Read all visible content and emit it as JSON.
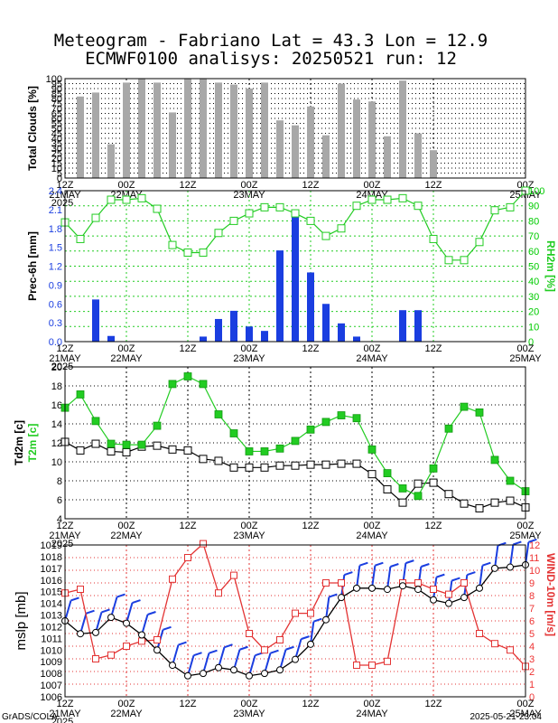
{
  "title_line1": "Meteogram - Fabriano Lat = 43.3 Lon = 12.9",
  "title_line2": "ECMWF0100 analisys: 20250521 run: 12",
  "footer_left": "GrADS/COLA",
  "footer_right": "2025-05-21-23:04",
  "time_axis": {
    "tick_labels": [
      "12Z",
      "00Z",
      "12Z",
      "00Z",
      "12Z",
      "00Z",
      "12Z",
      "00Z"
    ],
    "date_labels": [
      "21MAY",
      "22MAY",
      "23MAY",
      "24MAY",
      "25MAY"
    ],
    "year_label": "2025"
  },
  "colors": {
    "clouds_bar": "#a8a8a8",
    "precip_bar": "#1a3ee0",
    "rh_line": "#22cc22",
    "t2m_line": "#22cc22",
    "td2m_line": "#000000",
    "mslp_line": "#000000",
    "wind_line": "#e33333",
    "barb": "#1a3ee0",
    "grid_green": "#22cc22",
    "grid_red": "#e33333"
  },
  "chart_data": [
    {
      "type": "bar",
      "ylabel": "Total Clouds [%]",
      "ylim": [
        0,
        100
      ],
      "yticks": [
        0,
        5,
        10,
        15,
        20,
        25,
        30,
        35,
        40,
        45,
        50,
        55,
        60,
        65,
        70,
        75,
        80,
        85,
        90,
        95,
        100
      ],
      "x_hours": [
        3,
        6,
        9,
        12,
        15,
        18,
        21,
        24,
        27,
        30,
        33,
        36,
        39,
        42,
        45,
        48,
        51,
        54,
        57,
        60,
        63,
        66,
        69,
        72
      ],
      "values": [
        82,
        86,
        34,
        96,
        100,
        96,
        66,
        100,
        100,
        96,
        94,
        90,
        96,
        58,
        53,
        72,
        43,
        95,
        79,
        77,
        42,
        98,
        45,
        28
      ]
    },
    {
      "type": "bar",
      "ylabel": "Prec-6h [mm]",
      "y2label": "RH2m [%]",
      "ylim": [
        0,
        2.4
      ],
      "yticks": [
        0,
        0.3,
        0.6,
        0.9,
        1.2,
        1.5,
        1.8,
        2.1,
        2.4
      ],
      "y2lim": [
        0,
        100
      ],
      "y2ticks": [
        0,
        10,
        20,
        30,
        40,
        50,
        60,
        70,
        80,
        90,
        100
      ],
      "precip_x_hours": [
        3,
        6,
        9,
        12,
        15,
        18,
        21,
        24,
        27,
        30,
        33,
        36,
        39,
        42,
        45,
        48,
        51,
        54,
        57,
        60,
        63,
        66,
        69,
        72
      ],
      "precip_values": [
        0,
        0.67,
        0.09,
        0,
        0,
        0,
        0,
        0,
        0.08,
        0.36,
        0.49,
        0.24,
        0.17,
        1.45,
        1.99,
        1.1,
        0.6,
        0.29,
        0.08,
        0,
        0,
        0.5,
        0.5,
        0
      ],
      "rh_x_hours": [
        0,
        3,
        6,
        9,
        12,
        15,
        18,
        21,
        24,
        27,
        30,
        33,
        36,
        39,
        42,
        45,
        48,
        51,
        54,
        57,
        60,
        63,
        66,
        69,
        72,
        75,
        78,
        81,
        84,
        87,
        90
      ],
      "rh_values": [
        79,
        68,
        82,
        94,
        94,
        95,
        88,
        64,
        59,
        59,
        72,
        80,
        85,
        89,
        89,
        85,
        80,
        70,
        75,
        90,
        94,
        94,
        95,
        90,
        68,
        54,
        54,
        66,
        87,
        89,
        100
      ]
    },
    {
      "type": "line",
      "ylabel": "Td2m [c]",
      "ylabel2": "T2m [c]",
      "ylim": [
        4,
        20
      ],
      "yticks": [
        4,
        6,
        8,
        10,
        12,
        14,
        16,
        18,
        20
      ],
      "series": [
        {
          "name": "T2m [c]",
          "x_hours": [
            0,
            3,
            6,
            9,
            12,
            15,
            18,
            21,
            24,
            27,
            30,
            33,
            36,
            39,
            42,
            45,
            48,
            51,
            54,
            57,
            60,
            63,
            66,
            69,
            72,
            75,
            78,
            81,
            84,
            87,
            90
          ],
          "values": [
            15.7,
            17.1,
            14.3,
            11.9,
            11.8,
            11.8,
            13.8,
            18.2,
            19.0,
            18.2,
            15.0,
            13.0,
            11.1,
            11.1,
            11.4,
            12.2,
            13.4,
            14.2,
            14.9,
            14.6,
            11.3,
            8.8,
            7.2,
            6.4,
            9.3,
            13.5,
            15.8,
            15.2,
            10.2,
            8.0,
            6.9
          ]
        },
        {
          "name": "Td2m [c]",
          "x_hours": [
            0,
            3,
            6,
            9,
            12,
            15,
            18,
            21,
            24,
            27,
            30,
            33,
            36,
            39,
            42,
            45,
            48,
            51,
            54,
            57,
            60,
            63,
            66,
            69,
            72,
            75,
            78,
            81,
            84,
            87,
            90
          ],
          "values": [
            12.1,
            11.2,
            11.9,
            11.1,
            11.0,
            11.6,
            11.7,
            11.3,
            11.2,
            10.3,
            10.1,
            9.4,
            9.4,
            9.4,
            9.6,
            9.6,
            9.7,
            9.7,
            9.8,
            9.8,
            8.7,
            7.1,
            5.7,
            7.7,
            7.8,
            6.6,
            5.6,
            5.1,
            5.7,
            5.9,
            5.2
          ]
        }
      ]
    },
    {
      "type": "line",
      "ylabel": "mslp [mb]",
      "y2label": "WIND-10m [m/s]",
      "ylim": [
        1006,
        1019
      ],
      "yticks": [
        1006,
        1007,
        1008,
        1009,
        1010,
        1011,
        1012,
        1013,
        1014,
        1015,
        1016,
        1017,
        1018,
        1019
      ],
      "y2lim": [
        0,
        12
      ],
      "y2ticks": [
        0,
        1,
        2,
        3,
        4,
        5,
        6,
        7,
        8,
        9,
        10,
        11,
        12
      ],
      "series": [
        {
          "name": "mslp [mb]",
          "x_hours": [
            0,
            3,
            6,
            9,
            12,
            15,
            18,
            21,
            24,
            27,
            30,
            33,
            36,
            39,
            42,
            45,
            48,
            51,
            54,
            57,
            60,
            63,
            66,
            69,
            72,
            75,
            78,
            81,
            84,
            87,
            90
          ],
          "values": [
            1012.5,
            1011.4,
            1011.5,
            1012.8,
            1012.3,
            1011.3,
            1010.0,
            1008.7,
            1007.8,
            1008.0,
            1008.5,
            1008.3,
            1007.8,
            1008.0,
            1008.3,
            1009.2,
            1010.5,
            1012.6,
            1014.5,
            1015.3,
            1015.3,
            1015.2,
            1015.5,
            1015.2,
            1014.3,
            1014.0,
            1014.5,
            1015.3,
            1017.0,
            1017.1,
            1017.3
          ]
        },
        {
          "name": "WIND-10m [m/s]",
          "x_hours": [
            0,
            3,
            6,
            9,
            12,
            15,
            18,
            21,
            24,
            27,
            30,
            33,
            36,
            39,
            42,
            45,
            48,
            51,
            54,
            57,
            60,
            63,
            66,
            69,
            72,
            75,
            78,
            81,
            84,
            87,
            90
          ],
          "values": [
            8.2,
            8.5,
            3.0,
            3.3,
            4.0,
            4.4,
            4.5,
            9.3,
            11.0,
            12.1,
            8.2,
            9.6,
            5.0,
            3.7,
            4.5,
            6.6,
            6.6,
            9.0,
            9.0,
            2.5,
            2.5,
            2.8,
            9.0,
            9.0,
            8.5,
            8.1,
            9.0,
            5.0,
            4.2,
            3.7,
            2.4
          ]
        }
      ]
    }
  ]
}
